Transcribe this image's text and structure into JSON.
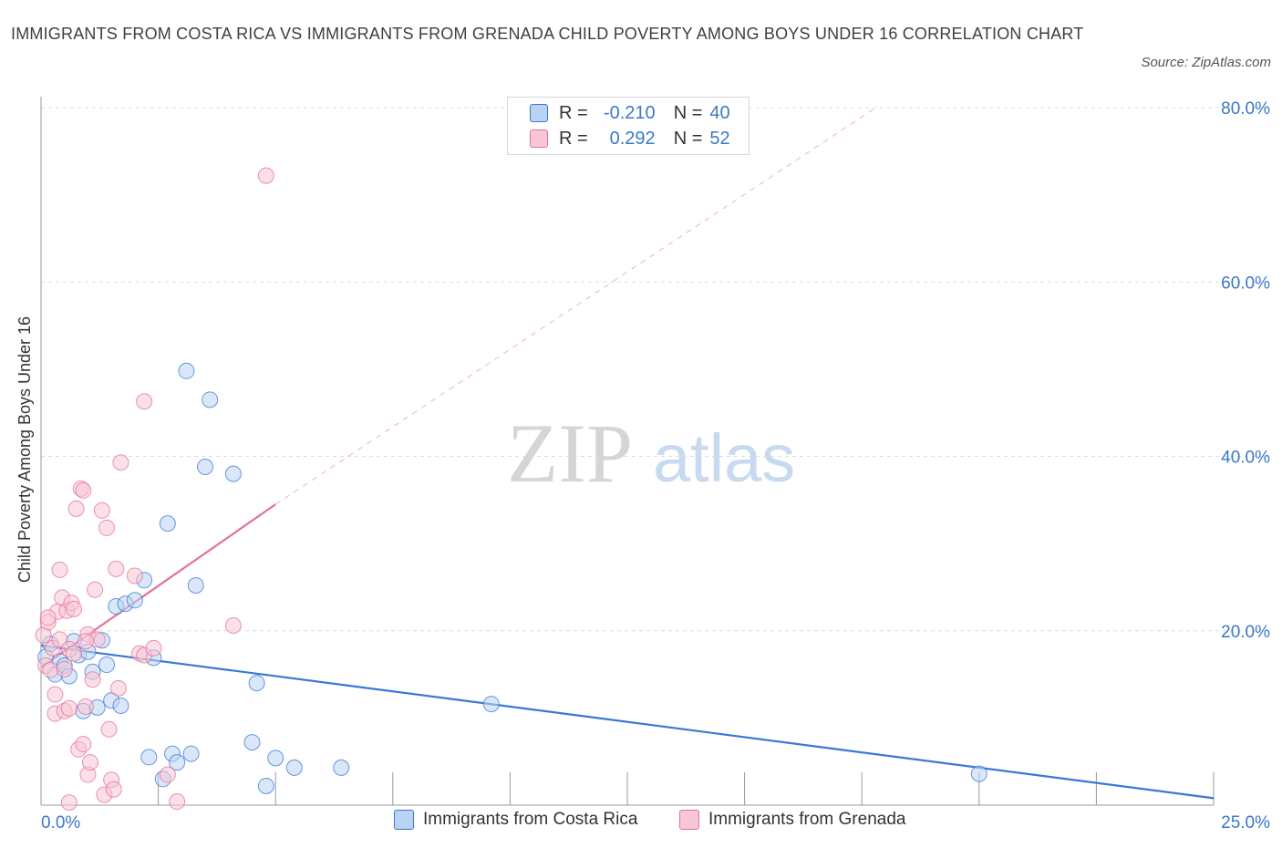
{
  "title": "IMMIGRANTS FROM COSTA RICA VS IMMIGRANTS FROM GRENADA CHILD POVERTY AMONG BOYS UNDER 16 CORRELATION CHART",
  "source": "Source: ZipAtlas.com",
  "watermark": {
    "zip": "ZIP",
    "atlas": "atlas"
  },
  "colors": {
    "blue": "#3a78d4",
    "blue_fill": "#b9d3f3",
    "pink": "#e4709a",
    "pink_fill": "#f8c6d6",
    "tick_text": "#3a78c9",
    "grid": "#dcdcdc"
  },
  "legend_top": {
    "rows": [
      {
        "r_label": "R =",
        "r_value": "-0.210",
        "n_label": "N =",
        "n_value": "40"
      },
      {
        "r_label": "R =",
        "r_value": "0.292",
        "n_label": "N =",
        "n_value": "52"
      }
    ]
  },
  "legend_bottom": [
    {
      "label": "Immigrants from Costa Rica"
    },
    {
      "label": "Immigrants from Grenada"
    }
  ],
  "chart_data": {
    "type": "scatter",
    "title": "IMMIGRANTS FROM COSTA RICA VS IMMIGRANTS FROM GRENADA CHILD POVERTY AMONG BOYS UNDER 16 CORRELATION CHART",
    "xlabel": "",
    "ylabel": "Child Poverty Among Boys Under 16",
    "xlim": [
      0,
      25
    ],
    "ylim": [
      0,
      80
    ],
    "x_tick_labels": [
      "0.0%",
      "25.0%"
    ],
    "y_tick_values": [
      20,
      40,
      60,
      80
    ],
    "y_tick_labels": [
      "20.0%",
      "40.0%",
      "60.0%",
      "80.0%"
    ],
    "grid": true,
    "legend_position": "bottom",
    "series": [
      {
        "name": "Immigrants from Costa Rica",
        "color": "#3a78d4",
        "points": [
          [
            0.1,
            17.0
          ],
          [
            0.2,
            18.5
          ],
          [
            0.3,
            15.0
          ],
          [
            0.4,
            16.5
          ],
          [
            0.5,
            16.0
          ],
          [
            0.6,
            14.8
          ],
          [
            0.7,
            18.8
          ],
          [
            0.8,
            17.2
          ],
          [
            0.9,
            10.8
          ],
          [
            1.0,
            17.6
          ],
          [
            1.1,
            15.3
          ],
          [
            1.2,
            11.2
          ],
          [
            1.3,
            18.9
          ],
          [
            1.4,
            16.1
          ],
          [
            1.5,
            12.0
          ],
          [
            1.6,
            22.8
          ],
          [
            1.7,
            11.4
          ],
          [
            1.8,
            23.1
          ],
          [
            2.0,
            23.5
          ],
          [
            2.2,
            25.8
          ],
          [
            2.3,
            5.5
          ],
          [
            2.4,
            16.9
          ],
          [
            2.6,
            3.0
          ],
          [
            2.7,
            32.3
          ],
          [
            2.8,
            5.9
          ],
          [
            2.9,
            4.9
          ],
          [
            3.1,
            49.8
          ],
          [
            3.2,
            5.9
          ],
          [
            3.3,
            25.2
          ],
          [
            3.5,
            38.8
          ],
          [
            3.6,
            46.5
          ],
          [
            4.1,
            38.0
          ],
          [
            4.5,
            7.2
          ],
          [
            4.6,
            14.0
          ],
          [
            4.8,
            2.2
          ],
          [
            5.0,
            5.4
          ],
          [
            5.4,
            4.3
          ],
          [
            6.4,
            4.3
          ],
          [
            9.6,
            11.6
          ],
          [
            20.0,
            3.6
          ]
        ],
        "trend": {
          "x": [
            0,
            25
          ],
          "y": [
            18.3,
            0.8
          ]
        }
      },
      {
        "name": "Immigrants from Grenada",
        "color": "#e4709a",
        "points": [
          [
            0.05,
            19.5
          ],
          [
            0.1,
            16.0
          ],
          [
            0.15,
            21.0
          ],
          [
            0.2,
            15.5
          ],
          [
            0.25,
            18.0
          ],
          [
            0.3,
            10.5
          ],
          [
            0.3,
            12.7
          ],
          [
            0.35,
            22.2
          ],
          [
            0.4,
            19.0
          ],
          [
            0.4,
            27.0
          ],
          [
            0.45,
            23.8
          ],
          [
            0.5,
            10.8
          ],
          [
            0.55,
            22.3
          ],
          [
            0.6,
            11.1
          ],
          [
            0.6,
            0.3
          ],
          [
            0.65,
            23.2
          ],
          [
            0.7,
            22.5
          ],
          [
            0.6,
            17.9
          ],
          [
            0.7,
            17.4
          ],
          [
            0.75,
            34.0
          ],
          [
            0.8,
            6.4
          ],
          [
            0.85,
            36.3
          ],
          [
            0.9,
            36.1
          ],
          [
            0.9,
            7.0
          ],
          [
            0.95,
            11.3
          ],
          [
            1.0,
            19.6
          ],
          [
            1.0,
            3.5
          ],
          [
            1.05,
            4.9
          ],
          [
            1.1,
            14.4
          ],
          [
            1.15,
            24.7
          ],
          [
            1.2,
            19.0
          ],
          [
            1.3,
            33.8
          ],
          [
            1.35,
            1.2
          ],
          [
            1.4,
            31.8
          ],
          [
            1.45,
            8.7
          ],
          [
            1.5,
            2.9
          ],
          [
            1.55,
            1.8
          ],
          [
            1.6,
            27.1
          ],
          [
            1.65,
            13.4
          ],
          [
            1.7,
            39.3
          ],
          [
            2.0,
            26.3
          ],
          [
            2.1,
            17.4
          ],
          [
            2.2,
            46.3
          ],
          [
            2.2,
            17.2
          ],
          [
            2.4,
            18.0
          ],
          [
            2.7,
            3.5
          ],
          [
            2.9,
            0.4
          ],
          [
            4.1,
            20.6
          ],
          [
            4.8,
            72.2
          ],
          [
            0.5,
            15.6
          ],
          [
            0.95,
            18.8
          ],
          [
            0.15,
            21.5
          ]
        ],
        "trend": {
          "x": [
            0,
            5
          ],
          "y": [
            15.8,
            34.5
          ]
        },
        "trend_extension": {
          "x": [
            5,
            17.8
          ],
          "y": [
            34.5,
            80.0
          ]
        }
      }
    ]
  }
}
